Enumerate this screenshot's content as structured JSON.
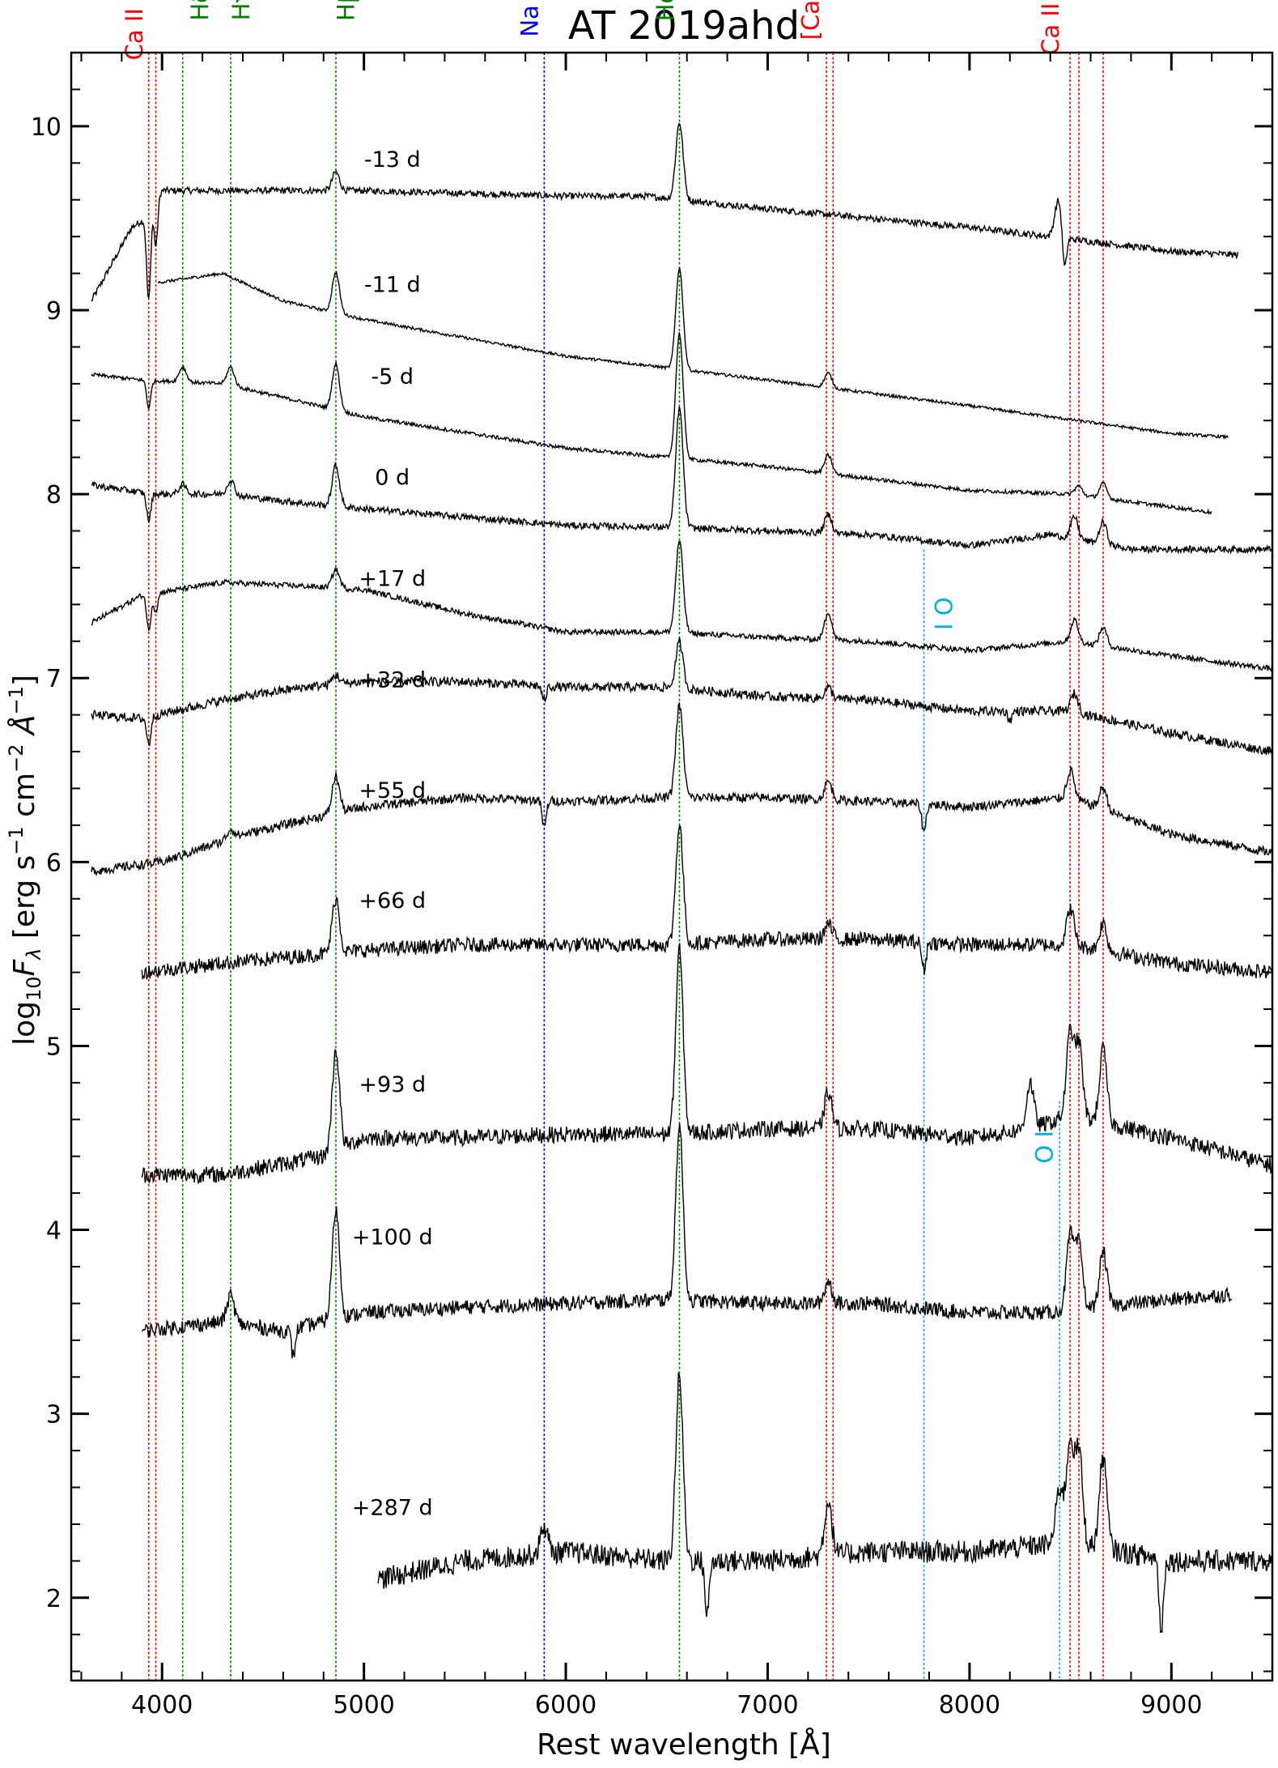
{
  "chart_data": {
    "type": "line",
    "title": "AT 2019ahd",
    "xlabel": "Rest wavelength [Å]",
    "ylabel": "log10Fλ [erg s⁻¹ cm⁻² Å⁻¹]",
    "ylabel_parts": {
      "main": "log",
      "sub1": "10",
      "var": "F",
      "sub2": "λ",
      "units": " [erg s",
      "e1": "−1",
      "u2": " cm",
      "e2": "−2",
      "u3": " Å",
      "e3": "−1",
      "close": "]"
    },
    "xlim": [
      3550,
      9500
    ],
    "ylim": [
      1.55,
      10.4
    ],
    "xticks": [
      4000,
      5000,
      6000,
      7000,
      8000,
      9000
    ],
    "yticks": [
      2,
      3,
      4,
      5,
      6,
      7,
      8,
      9,
      10
    ],
    "grid": false,
    "line_markers": [
      {
        "label": "Ca II H&K",
        "color": "#ff0000",
        "positions": [
          3934,
          3969
        ],
        "label_x": 3870,
        "label_y": 10.22
      },
      {
        "label": "Hδ",
        "color": "#008000",
        "positions": [
          4102
        ],
        "label_x": 4195,
        "label_y": 10.22
      },
      {
        "label": "Hγ",
        "color": "#008000",
        "positions": [
          4340
        ],
        "label_x": 4400,
        "label_y": 10.22
      },
      {
        "label": "Hβ",
        "color": "#008000",
        "positions": [
          4861
        ],
        "label_x": 4920,
        "label_y": 10.22
      },
      {
        "label": "Na ID",
        "color": "#0000ff",
        "positions": [
          5893
        ],
        "label_x": 5830,
        "label_y": 10.22
      },
      {
        "label": "Hα",
        "color": "#008000",
        "positions": [
          6563
        ],
        "label_x": 6500,
        "label_y": 10.22
      },
      {
        "label": "[Ca II]",
        "color": "#ff0000",
        "positions": [
          7291,
          7324
        ],
        "label_x": 7220,
        "label_y": 10.22
      },
      {
        "label": "Ca II NIR",
        "color": "#ff0000",
        "positions": [
          8498,
          8542,
          8662
        ],
        "label_x": 8410,
        "label_y": 10.22
      },
      {
        "label": "O I",
        "color": "#00b0e0",
        "positions": [
          7774
        ],
        "label_x": 7860,
        "label_y": 7.35,
        "y_top": 7.7,
        "label_rotate": 90
      },
      {
        "label": "O I",
        "color": "#00b0e0",
        "positions": [
          8446
        ],
        "label_x": 8380,
        "label_y": 4.45,
        "y_top": 4.7,
        "label_rotate": -90
      }
    ],
    "series": [
      {
        "name": "-13 d",
        "label_x": 4820,
        "label_y": 9.78,
        "x_start": 3650,
        "x_end": 9330,
        "noise": 0.018,
        "points": [
          [
            3650,
            9.05
          ],
          [
            3750,
            9.25
          ],
          [
            3850,
            9.45
          ],
          [
            3920,
            9.5
          ],
          [
            3960,
            9.65
          ],
          [
            4100,
            9.65
          ],
          [
            4400,
            9.65
          ],
          [
            5000,
            9.65
          ],
          [
            6000,
            9.62
          ],
          [
            6400,
            9.62
          ],
          [
            7000,
            9.55
          ],
          [
            7500,
            9.5
          ],
          [
            8000,
            9.45
          ],
          [
            8400,
            9.4
          ],
          [
            9000,
            9.32
          ],
          [
            9330,
            9.3
          ]
        ],
        "absorptions": [
          [
            3934,
            -0.5
          ],
          [
            3969,
            -0.3
          ],
          [
            8470,
            -0.2
          ]
        ],
        "emissions": [
          [
            4861,
            0.1
          ],
          [
            6563,
            0.42
          ],
          [
            8440,
            0.2
          ]
        ]
      },
      {
        "name": "-11 d",
        "label_x": 4820,
        "label_y": 9.1,
        "x_start": 3980,
        "x_end": 9280,
        "noise": 0.008,
        "points": [
          [
            3980,
            9.15
          ],
          [
            4300,
            9.2
          ],
          [
            4600,
            9.05
          ],
          [
            5000,
            8.95
          ],
          [
            6000,
            8.75
          ],
          [
            6400,
            8.7
          ],
          [
            7000,
            8.62
          ],
          [
            8000,
            8.48
          ],
          [
            9000,
            8.33
          ],
          [
            9280,
            8.31
          ]
        ],
        "absorptions": [],
        "emissions": [
          [
            4861,
            0.22
          ],
          [
            6563,
            0.55
          ],
          [
            7300,
            0.08
          ]
        ]
      },
      {
        "name": "-5 d",
        "label_x": 4820,
        "label_y": 8.6,
        "x_start": 3650,
        "x_end": 9200,
        "noise": 0.01,
        "points": [
          [
            3650,
            8.65
          ],
          [
            3900,
            8.62
          ],
          [
            4300,
            8.6
          ],
          [
            4700,
            8.5
          ],
          [
            5000,
            8.42
          ],
          [
            6000,
            8.25
          ],
          [
            6500,
            8.2
          ],
          [
            7000,
            8.15
          ],
          [
            8000,
            8.02
          ],
          [
            8500,
            8.0
          ],
          [
            9000,
            7.93
          ],
          [
            9200,
            7.9
          ]
        ],
        "absorptions": [
          [
            3934,
            -0.15
          ]
        ],
        "emissions": [
          [
            4102,
            0.08
          ],
          [
            4340,
            0.1
          ],
          [
            4861,
            0.25
          ],
          [
            6563,
            0.68
          ],
          [
            7300,
            0.1
          ],
          [
            8540,
            0.05
          ],
          [
            8662,
            0.08
          ]
        ]
      },
      {
        "name": "0 d",
        "label_x": 4820,
        "label_y": 8.05,
        "x_start": 3650,
        "x_end": 9500,
        "noise": 0.018,
        "points": [
          [
            3650,
            8.05
          ],
          [
            3950,
            8.0
          ],
          [
            4300,
            8.0
          ],
          [
            4700,
            7.95
          ],
          [
            5000,
            7.92
          ],
          [
            6000,
            7.83
          ],
          [
            6500,
            7.82
          ],
          [
            7000,
            7.8
          ],
          [
            7500,
            7.78
          ],
          [
            8000,
            7.72
          ],
          [
            8400,
            7.78
          ],
          [
            8800,
            7.7
          ],
          [
            9500,
            7.7
          ]
        ],
        "absorptions": [
          [
            3934,
            -0.15
          ]
        ],
        "emissions": [
          [
            4102,
            0.05
          ],
          [
            4340,
            0.08
          ],
          [
            4861,
            0.22
          ],
          [
            6563,
            0.65
          ],
          [
            7300,
            0.1
          ],
          [
            8520,
            0.12
          ],
          [
            8662,
            0.12
          ]
        ]
      },
      {
        "name": "+17 d",
        "label_x": 4820,
        "label_y": 7.5,
        "x_start": 3650,
        "x_end": 9500,
        "noise": 0.015,
        "points": [
          [
            3650,
            7.3
          ],
          [
            3900,
            7.45
          ],
          [
            4300,
            7.52
          ],
          [
            4700,
            7.5
          ],
          [
            5000,
            7.48
          ],
          [
            5500,
            7.35
          ],
          [
            6000,
            7.25
          ],
          [
            6500,
            7.25
          ],
          [
            7000,
            7.22
          ],
          [
            7500,
            7.2
          ],
          [
            8000,
            7.15
          ],
          [
            8500,
            7.2
          ],
          [
            9000,
            7.12
          ],
          [
            9500,
            7.05
          ]
        ],
        "absorptions": [
          [
            3934,
            -0.2
          ],
          [
            3969,
            -0.1
          ]
        ],
        "emissions": [
          [
            4861,
            0.1
          ],
          [
            6563,
            0.5
          ],
          [
            7300,
            0.15
          ],
          [
            8520,
            0.12
          ],
          [
            8662,
            0.1
          ]
        ]
      },
      {
        "name": "+32 d",
        "label_x": 4820,
        "label_y": 6.95,
        "x_start": 3650,
        "x_end": 9500,
        "noise": 0.025,
        "points": [
          [
            3650,
            6.8
          ],
          [
            3900,
            6.78
          ],
          [
            4300,
            6.88
          ],
          [
            4700,
            6.95
          ],
          [
            5000,
            6.98
          ],
          [
            5500,
            6.98
          ],
          [
            6000,
            6.95
          ],
          [
            6500,
            6.95
          ],
          [
            7000,
            6.9
          ],
          [
            7500,
            6.88
          ],
          [
            8000,
            6.82
          ],
          [
            8500,
            6.82
          ],
          [
            9000,
            6.7
          ],
          [
            9500,
            6.6
          ]
        ],
        "absorptions": [
          [
            3934,
            -0.15
          ],
          [
            5893,
            -0.08
          ],
          [
            8200,
            -0.05
          ]
        ],
        "emissions": [
          [
            4861,
            0.05
          ],
          [
            6563,
            0.25
          ],
          [
            7300,
            0.06
          ],
          [
            8520,
            0.1
          ]
        ]
      },
      {
        "name": "+55 d",
        "label_x": 4820,
        "label_y": 6.35,
        "x_start": 3650,
        "x_end": 9500,
        "noise": 0.025,
        "points": [
          [
            3650,
            5.95
          ],
          [
            4000,
            6.0
          ],
          [
            4400,
            6.15
          ],
          [
            4800,
            6.25
          ],
          [
            5000,
            6.3
          ],
          [
            5500,
            6.35
          ],
          [
            6000,
            6.33
          ],
          [
            6500,
            6.35
          ],
          [
            7000,
            6.35
          ],
          [
            7500,
            6.33
          ],
          [
            8000,
            6.3
          ],
          [
            8500,
            6.35
          ],
          [
            9000,
            6.15
          ],
          [
            9500,
            6.05
          ]
        ],
        "absorptions": [
          [
            5893,
            -0.15
          ],
          [
            7774,
            -0.15
          ]
        ],
        "emissions": [
          [
            4861,
            0.2
          ],
          [
            4340,
            0.05
          ],
          [
            6563,
            0.5
          ],
          [
            7300,
            0.1
          ],
          [
            8500,
            0.15
          ],
          [
            8662,
            0.12
          ]
        ]
      },
      {
        "name": "+66 d",
        "label_x": 4820,
        "label_y": 5.75,
        "x_start": 3900,
        "x_end": 9500,
        "noise": 0.04,
        "points": [
          [
            3900,
            5.4
          ],
          [
            4300,
            5.45
          ],
          [
            4800,
            5.5
          ],
          [
            5000,
            5.52
          ],
          [
            5500,
            5.55
          ],
          [
            6000,
            5.55
          ],
          [
            6500,
            5.55
          ],
          [
            7000,
            5.58
          ],
          [
            7500,
            5.58
          ],
          [
            8000,
            5.55
          ],
          [
            8500,
            5.55
          ],
          [
            9000,
            5.45
          ],
          [
            9500,
            5.4
          ]
        ],
        "absorptions": [
          [
            7774,
            -0.15
          ]
        ],
        "emissions": [
          [
            4861,
            0.3
          ],
          [
            6563,
            0.65
          ],
          [
            7300,
            0.08
          ],
          [
            8500,
            0.2
          ],
          [
            8662,
            0.15
          ]
        ]
      },
      {
        "name": "+93 d",
        "label_x": 4820,
        "label_y": 4.75,
        "x_start": 3900,
        "x_end": 9500,
        "noise": 0.045,
        "points": [
          [
            3900,
            4.3
          ],
          [
            4300,
            4.3
          ],
          [
            4800,
            4.4
          ],
          [
            5000,
            4.5
          ],
          [
            5500,
            4.5
          ],
          [
            6000,
            4.52
          ],
          [
            6500,
            4.52
          ],
          [
            7000,
            4.55
          ],
          [
            7500,
            4.55
          ],
          [
            8000,
            4.5
          ],
          [
            8300,
            4.55
          ],
          [
            8500,
            4.62
          ],
          [
            9000,
            4.5
          ],
          [
            9500,
            4.35
          ]
        ],
        "absorptions": [],
        "emissions": [
          [
            4861,
            0.55
          ],
          [
            6563,
            1.0
          ],
          [
            7300,
            0.2
          ],
          [
            8300,
            0.25
          ],
          [
            8498,
            0.45
          ],
          [
            8542,
            0.4
          ],
          [
            8662,
            0.4
          ]
        ]
      },
      {
        "name": "+100 d",
        "label_x": 4820,
        "label_y": 3.92,
        "x_start": 3900,
        "x_end": 9300,
        "noise": 0.04,
        "points": [
          [
            3900,
            3.45
          ],
          [
            4300,
            3.5
          ],
          [
            4600,
            3.45
          ],
          [
            4800,
            3.5
          ],
          [
            5000,
            3.55
          ],
          [
            5500,
            3.58
          ],
          [
            6000,
            3.6
          ],
          [
            6500,
            3.62
          ],
          [
            7000,
            3.6
          ],
          [
            7500,
            3.6
          ],
          [
            8000,
            3.55
          ],
          [
            8400,
            3.55
          ],
          [
            8800,
            3.6
          ],
          [
            9300,
            3.65
          ]
        ],
        "absorptions": [
          [
            4650,
            -0.15
          ]
        ],
        "emissions": [
          [
            4340,
            0.15
          ],
          [
            4861,
            0.6
          ],
          [
            6563,
            0.95
          ],
          [
            7300,
            0.12
          ],
          [
            8498,
            0.4
          ],
          [
            8542,
            0.35
          ],
          [
            8662,
            0.3
          ]
        ]
      },
      {
        "name": "+287 d",
        "label_x": 4820,
        "label_y": 2.45,
        "x_start": 5070,
        "x_end": 9500,
        "noise": 0.06,
        "points": [
          [
            5070,
            2.1
          ],
          [
            5500,
            2.2
          ],
          [
            6000,
            2.25
          ],
          [
            6500,
            2.2
          ],
          [
            7000,
            2.2
          ],
          [
            7500,
            2.25
          ],
          [
            8000,
            2.25
          ],
          [
            8500,
            2.3
          ],
          [
            9000,
            2.2
          ],
          [
            9500,
            2.2
          ]
        ],
        "absorptions": [
          [
            6700,
            -0.3
          ],
          [
            8950,
            -0.4
          ]
        ],
        "emissions": [
          [
            5893,
            0.15
          ],
          [
            6563,
            1.0
          ],
          [
            7300,
            0.3
          ],
          [
            8446,
            0.3
          ],
          [
            8498,
            0.55
          ],
          [
            8542,
            0.5
          ],
          [
            8662,
            0.5
          ]
        ]
      }
    ]
  }
}
